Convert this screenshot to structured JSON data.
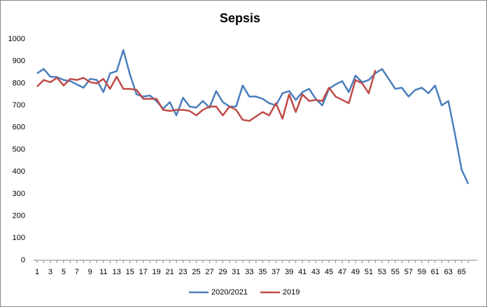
{
  "chart_data": {
    "type": "line",
    "title": "Sepsis",
    "categories": [
      1,
      null,
      3,
      null,
      5,
      null,
      7,
      null,
      9,
      null,
      11,
      null,
      13,
      null,
      15,
      null,
      17,
      null,
      19,
      null,
      21,
      null,
      23,
      null,
      25,
      null,
      27,
      null,
      29,
      null,
      31,
      null,
      33,
      null,
      35,
      null,
      37,
      null,
      39,
      null,
      41,
      null,
      43,
      null,
      45,
      null,
      47,
      null,
      49,
      null,
      51,
      null,
      53,
      null,
      55,
      null,
      57,
      null,
      59,
      null,
      61,
      null,
      63,
      null,
      65,
      null
    ],
    "series": [
      {
        "name": "2020/2021",
        "color": "#4a7ebb",
        "values": [
          845,
          865,
          830,
          828,
          815,
          810,
          795,
          780,
          820,
          815,
          760,
          845,
          855,
          950,
          840,
          750,
          740,
          745,
          720,
          685,
          715,
          655,
          735,
          695,
          690,
          720,
          690,
          765,
          715,
          695,
          695,
          790,
          740,
          740,
          730,
          710,
          700,
          755,
          765,
          725,
          760,
          775,
          730,
          700,
          775,
          795,
          810,
          760,
          835,
          805,
          815,
          845,
          865,
          820,
          775,
          780,
          740,
          770,
          780,
          755,
          790,
          700,
          720,
          570,
          410,
          345
        ]
      },
      {
        "name": "2019",
        "color": "#be4b48",
        "values": [
          785,
          815,
          805,
          825,
          790,
          820,
          815,
          825,
          805,
          800,
          820,
          775,
          830,
          775,
          775,
          770,
          730,
          730,
          730,
          680,
          675,
          680,
          680,
          675,
          655,
          680,
          695,
          695,
          655,
          695,
          680,
          635,
          630,
          650,
          670,
          655,
          710,
          640,
          750,
          670,
          750,
          720,
          725,
          720,
          780,
          740,
          725,
          710,
          815,
          800,
          755,
          860,
          null,
          null,
          null,
          null,
          null,
          null,
          null,
          null,
          null,
          null,
          null,
          null,
          null,
          null
        ]
      }
    ],
    "ylim": [
      0,
      1000
    ],
    "yticks": [
      0,
      100,
      200,
      300,
      400,
      500,
      600,
      700,
      800,
      900,
      1000
    ],
    "grid": false,
    "legend": "bottom"
  }
}
